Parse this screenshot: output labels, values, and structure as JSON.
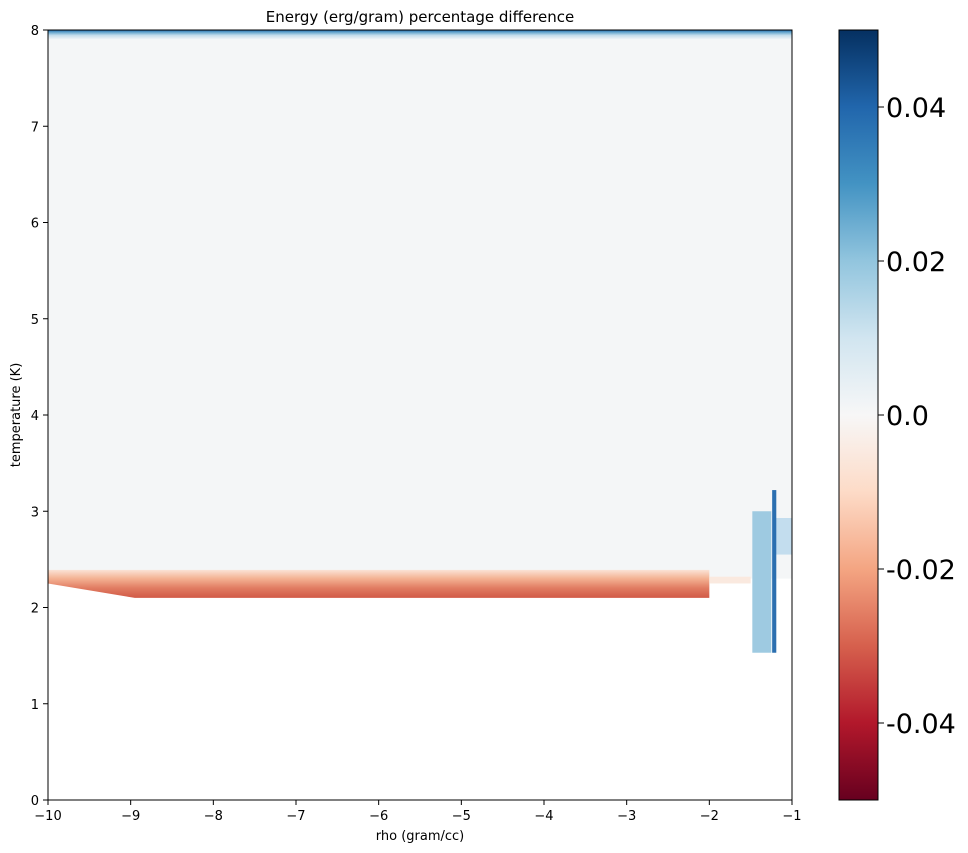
{
  "chart_data": {
    "type": "heatmap",
    "title": "Energy (erg/gram) percentage difference",
    "xlabel": "rho (gram/cc)",
    "ylabel": "temperature (K)",
    "xlim": [
      -10,
      -1
    ],
    "ylim": [
      0,
      8
    ],
    "x_ticks": [
      -10,
      -9,
      -8,
      -7,
      -6,
      -5,
      -4,
      -3,
      -2,
      -1
    ],
    "x_tick_labels": [
      "−10",
      "−9",
      "−8",
      "−7",
      "−6",
      "−5",
      "−4",
      "−3",
      "−2",
      "−1"
    ],
    "y_ticks": [
      0,
      1,
      2,
      3,
      4,
      5,
      6,
      7,
      8
    ],
    "y_tick_labels": [
      "0",
      "1",
      "2",
      "3",
      "4",
      "5",
      "6",
      "7",
      "8"
    ],
    "colormap": "RdBu",
    "color_range": [
      -0.05,
      0.05
    ],
    "colorbar_ticks": [
      0.04,
      0.02,
      0.0,
      -0.02,
      -0.04
    ],
    "colorbar_tick_labels": [
      "0.04",
      "0.02",
      "0.0",
      "-0.02",
      "-0.04"
    ],
    "regions": [
      {
        "name": "bulk",
        "rho": [
          -10,
          -1
        ],
        "temperature": [
          2.3,
          7.9
        ],
        "value": 0.0
      },
      {
        "name": "top-edge",
        "rho": [
          -10,
          -1
        ],
        "temperature": [
          7.9,
          8.0
        ],
        "value": 0.045
      },
      {
        "name": "low-band",
        "rho": [
          -10,
          -2.0
        ],
        "temperature": [
          2.1,
          2.35
        ],
        "value": -0.03
      },
      {
        "name": "low-band-tail",
        "rho": [
          -2.0,
          -1.5
        ],
        "temperature": [
          2.25,
          2.32
        ],
        "value": -0.005
      },
      {
        "name": "patch-a",
        "rho": [
          -1.48,
          -1.25
        ],
        "temperature": [
          1.53,
          3.0
        ],
        "value": 0.02
      },
      {
        "name": "patch-b",
        "rho": [
          -1.2,
          -1.0
        ],
        "temperature": [
          2.55,
          2.93
        ],
        "value": 0.015
      },
      {
        "name": "spike",
        "rho": [
          -1.24,
          -1.19
        ],
        "temperature": [
          1.53,
          3.22
        ],
        "value": 0.04
      }
    ]
  }
}
